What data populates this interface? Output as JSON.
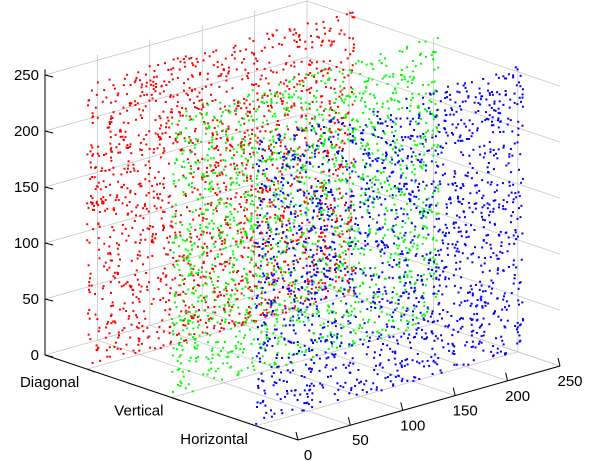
{
  "chart_data": {
    "type": "scatter",
    "subtype": "3d-scatter",
    "grid": true,
    "legend": "none",
    "z_ticks": [
      0,
      50,
      100,
      150,
      200,
      250
    ],
    "x_ticks": [
      0,
      50,
      100,
      150,
      200,
      250
    ],
    "xlim": [
      0,
      250
    ],
    "zlim": [
      0,
      250
    ],
    "categories": [
      "Diagonal",
      "Vertical",
      "Horizontal"
    ],
    "series": [
      {
        "category": "Diagonal",
        "color": "#ff0000",
        "x_range": [
          0,
          255
        ],
        "z_range": [
          0,
          255
        ],
        "point_count": 1700
      },
      {
        "category": "Vertical",
        "color": "#00ff00",
        "x_range": [
          0,
          255
        ],
        "z_range": [
          0,
          255
        ],
        "point_count": 1700
      },
      {
        "category": "Horizontal",
        "color": "#0000ff",
        "x_range": [
          0,
          255
        ],
        "z_range": [
          0,
          255
        ],
        "point_count": 1700
      }
    ]
  }
}
